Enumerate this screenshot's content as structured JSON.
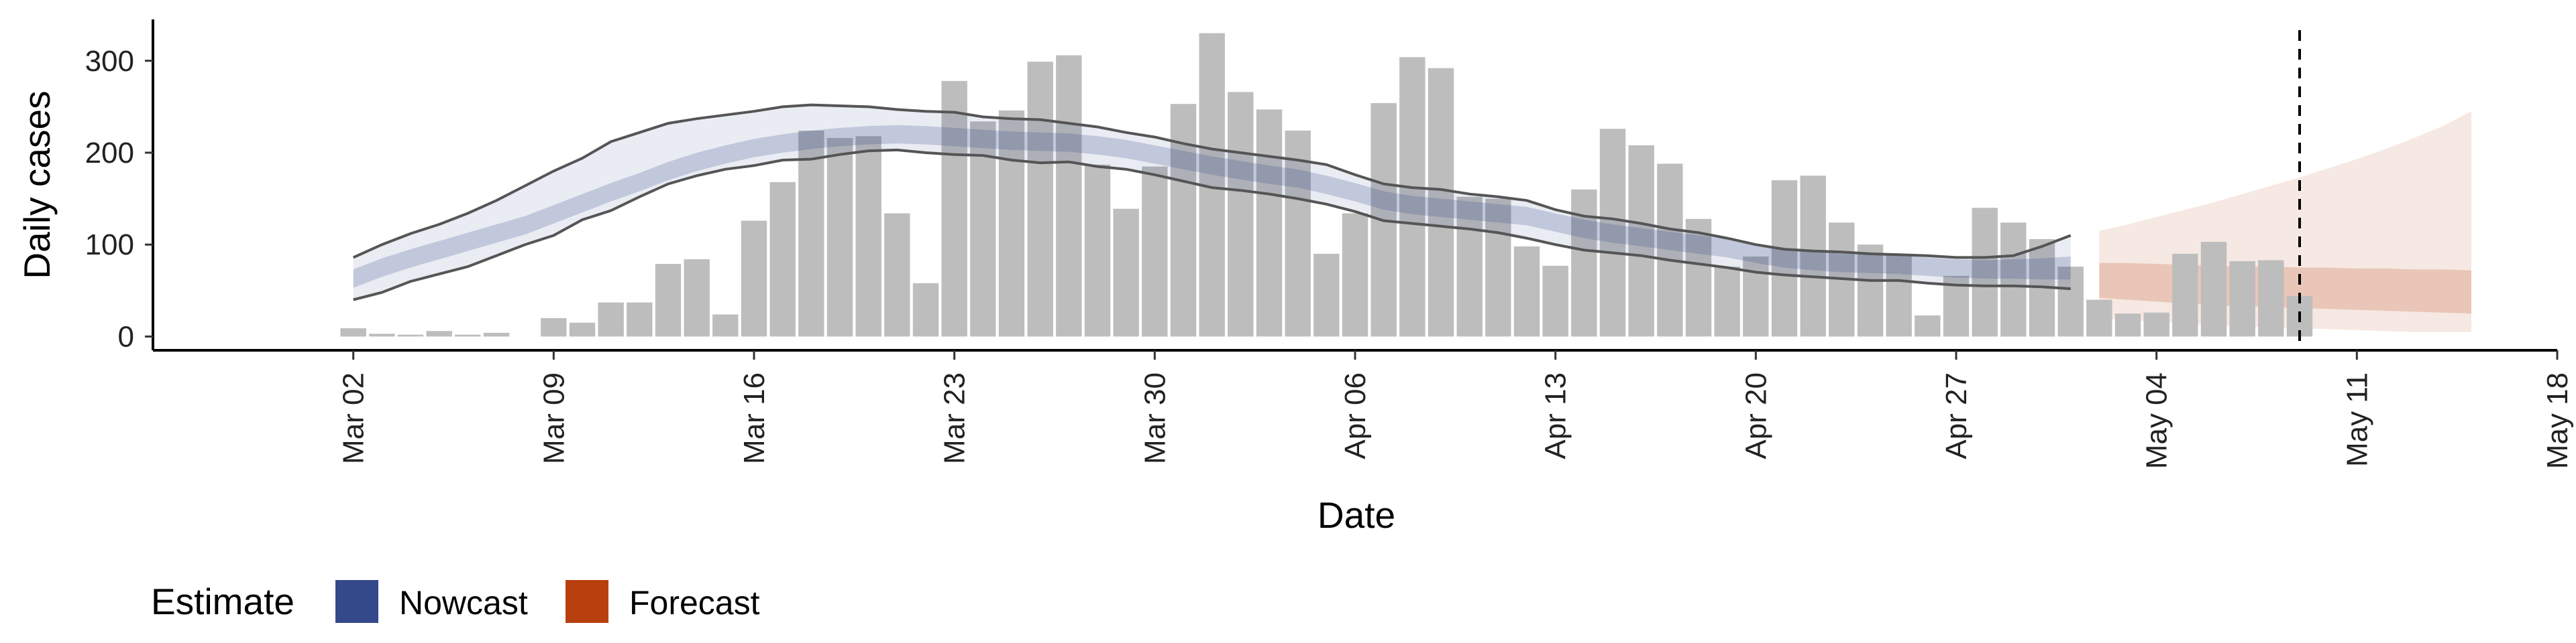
{
  "chart_data": {
    "type": "bar",
    "xlabel": "Date",
    "ylabel": "Daily cases",
    "ylim": [
      -15,
      345
    ],
    "xlim": [
      "2020-02-24",
      "2020-05-18"
    ],
    "x_ticks": [
      "Mar 02",
      "Mar 09",
      "Mar 16",
      "Mar 23",
      "Mar 30",
      "Apr 06",
      "Apr 13",
      "Apr 20",
      "Apr 27",
      "May 04",
      "May 11",
      "May 18"
    ],
    "y_ticks": [
      0,
      100,
      200,
      300
    ],
    "bars": {
      "color": "#bdbdbd",
      "start_date": "2020-03-02",
      "values": [
        9,
        3,
        2,
        6,
        2,
        4,
        0,
        20,
        15,
        37,
        37,
        79,
        84,
        24,
        126,
        168,
        224,
        216,
        218,
        134,
        58,
        278,
        234,
        246,
        299,
        306,
        187,
        139,
        185,
        253,
        330,
        266,
        247,
        224,
        90,
        134,
        254,
        304,
        292,
        152,
        150,
        98,
        77,
        160,
        226,
        208,
        188,
        128,
        76,
        87,
        170,
        175,
        124,
        100,
        90,
        23,
        66,
        140,
        124,
        106,
        76,
        40,
        25,
        26,
        90,
        103,
        82,
        83,
        44
      ]
    },
    "nowcast": {
      "name": "Nowcast",
      "color": "#34498a",
      "start_date": "2020-03-02",
      "median": [
        63,
        75,
        85,
        94,
        103,
        112,
        121,
        133,
        145,
        157,
        168,
        180,
        190,
        198,
        205,
        210,
        214,
        217,
        219,
        220,
        219,
        217,
        215,
        213,
        212,
        211,
        208,
        204,
        198,
        192,
        186,
        181,
        176,
        172,
        165,
        157,
        148,
        143,
        140,
        137,
        134,
        131,
        124,
        117,
        112,
        108,
        104,
        100,
        96,
        90,
        85,
        82,
        80,
        79,
        78,
        76,
        74,
        73,
        73,
        73,
        74
      ],
      "inner_lower": [
        53,
        65,
        75,
        84,
        93,
        102,
        111,
        123,
        135,
        147,
        158,
        170,
        180,
        188,
        195,
        200,
        204,
        207,
        209,
        210,
        209,
        207,
        205,
        203,
        202,
        201,
        198,
        194,
        188,
        182,
        176,
        171,
        166,
        162,
        155,
        147,
        138,
        133,
        130,
        127,
        124,
        121,
        114,
        107,
        102,
        98,
        94,
        90,
        86,
        80,
        75,
        72,
        70,
        69,
        68,
        66,
        64,
        63,
        63,
        62,
        62
      ],
      "inner_upper": [
        73,
        85,
        95,
        104,
        113,
        122,
        131,
        143,
        155,
        167,
        178,
        190,
        200,
        208,
        215,
        220,
        224,
        227,
        229,
        230,
        229,
        227,
        225,
        223,
        222,
        221,
        218,
        214,
        208,
        202,
        196,
        191,
        186,
        182,
        175,
        167,
        158,
        153,
        150,
        147,
        144,
        141,
        134,
        127,
        122,
        118,
        114,
        110,
        106,
        100,
        95,
        92,
        90,
        89,
        88,
        86,
        84,
        83,
        84,
        85,
        87
      ],
      "outer_lower": [
        40,
        48,
        60,
        68,
        76,
        88,
        100,
        110,
        127,
        137,
        152,
        166,
        175,
        182,
        186,
        192,
        193,
        198,
        202,
        203,
        200,
        198,
        197,
        192,
        189,
        190,
        185,
        182,
        176,
        169,
        162,
        159,
        155,
        150,
        144,
        136,
        126,
        123,
        120,
        117,
        113,
        107,
        100,
        94,
        91,
        88,
        83,
        79,
        75,
        70,
        67,
        65,
        63,
        61,
        61,
        58,
        56,
        55,
        55,
        54,
        52
      ],
      "outer_upper": [
        86,
        100,
        112,
        122,
        134,
        148,
        164,
        180,
        194,
        212,
        222,
        232,
        237,
        241,
        245,
        250,
        252,
        251,
        250,
        247,
        245,
        244,
        239,
        237,
        236,
        232,
        228,
        222,
        217,
        210,
        204,
        200,
        196,
        192,
        187,
        176,
        166,
        162,
        160,
        155,
        152,
        148,
        138,
        131,
        128,
        123,
        117,
        113,
        107,
        100,
        95,
        93,
        92,
        90,
        89,
        88,
        86,
        86,
        88,
        98,
        110
      ]
    },
    "forecast": {
      "name": "Forecast",
      "color": "#b8400e",
      "start_date": "2020-05-02",
      "median": [
        58,
        57,
        56,
        55,
        54,
        54,
        53,
        53,
        52,
        52,
        51,
        51,
        50,
        50
      ],
      "inner_lower": [
        42,
        40,
        38,
        36,
        34,
        33,
        32,
        31,
        30,
        29,
        28,
        27,
        26,
        25
      ],
      "inner_upper": [
        80,
        80,
        79,
        78,
        77,
        76,
        76,
        75,
        75,
        74,
        74,
        73,
        73,
        72
      ],
      "outer_lower": [
        20,
        18,
        16,
        14,
        12,
        11,
        10,
        9,
        8,
        7,
        6,
        5,
        5,
        5
      ],
      "outer_upper": [
        115,
        122,
        130,
        138,
        146,
        155,
        164,
        173,
        183,
        193,
        204,
        216,
        229,
        245
      ]
    },
    "reference_line": {
      "date": "2020-05-09",
      "style": "dashed"
    },
    "legend": {
      "title": "Estimate",
      "position": "bottom-left",
      "items": [
        {
          "label": "Nowcast",
          "color": "#34498a"
        },
        {
          "label": "Forecast",
          "color": "#b8400e"
        }
      ]
    },
    "grid": false
  }
}
